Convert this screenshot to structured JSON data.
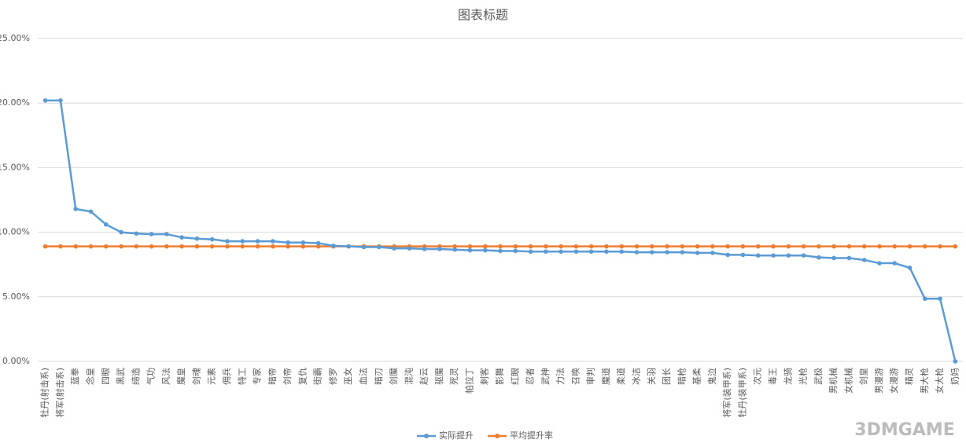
{
  "chart_data": {
    "type": "line",
    "title": "图表标题",
    "categories": [
      "牡丹(射击系)",
      "将军(射击系)",
      "蓝拳",
      "念皇",
      "四眼",
      "黑武",
      "缔造",
      "气功",
      "风法",
      "魔皇",
      "剑魂",
      "元素",
      "佣兵",
      "特工",
      "专家",
      "暗帝",
      "剑帝",
      "复仇",
      "街霸",
      "修罗",
      "巫女",
      "血法",
      "暗刃",
      "剑魔",
      "混沌",
      "赵云",
      "驱魔",
      "死灵",
      "帕拉丁",
      "刺客",
      "影舞",
      "红眼",
      "忍者",
      "武神",
      "力法",
      "召唤",
      "审判",
      "魔道",
      "柔道",
      "冰洁",
      "关羽",
      "团长",
      "暗枪",
      "基柔",
      "鬼泣",
      "将军(装甲系)",
      "牡丹(装甲系)",
      "次元",
      "毒王",
      "龙骑",
      "光枪",
      "武极",
      "男机械",
      "女机械",
      "剑皇",
      "男漫游",
      "女漫游",
      "精灵",
      "男大枪",
      "女大枪",
      "奶妈"
    ],
    "series": [
      {
        "name": "实际提升",
        "color": "#5b9bd5",
        "values": [
          20.2,
          20.2,
          11.8,
          11.6,
          10.6,
          10.0,
          9.9,
          9.85,
          9.85,
          9.6,
          9.5,
          9.45,
          9.3,
          9.3,
          9.3,
          9.3,
          9.2,
          9.2,
          9.15,
          8.95,
          8.9,
          8.85,
          8.85,
          8.75,
          8.75,
          8.7,
          8.7,
          8.65,
          8.6,
          8.6,
          8.55,
          8.55,
          8.5,
          8.5,
          8.5,
          8.5,
          8.5,
          8.5,
          8.5,
          8.45,
          8.45,
          8.45,
          8.45,
          8.4,
          8.4,
          8.25,
          8.25,
          8.2,
          8.2,
          8.2,
          8.2,
          8.05,
          8.0,
          8.0,
          7.85,
          7.6,
          7.6,
          7.25,
          4.85,
          4.85,
          0
        ]
      },
      {
        "name": "平均提升率",
        "color": "#ed7d31",
        "values": [
          8.9,
          8.9,
          8.9,
          8.9,
          8.9,
          8.9,
          8.9,
          8.9,
          8.9,
          8.9,
          8.9,
          8.9,
          8.9,
          8.9,
          8.9,
          8.9,
          8.9,
          8.9,
          8.9,
          8.9,
          8.9,
          8.9,
          8.9,
          8.9,
          8.9,
          8.9,
          8.9,
          8.9,
          8.9,
          8.9,
          8.9,
          8.9,
          8.9,
          8.9,
          8.9,
          8.9,
          8.9,
          8.9,
          8.9,
          8.9,
          8.9,
          8.9,
          8.9,
          8.9,
          8.9,
          8.9,
          8.9,
          8.9,
          8.9,
          8.9,
          8.9,
          8.9,
          8.9,
          8.9,
          8.9,
          8.9,
          8.9,
          8.9,
          8.9,
          8.9,
          8.9
        ]
      }
    ],
    "ylim": [
      0,
      25
    ],
    "yticks": [
      {
        "value": 0,
        "label": "0.00%"
      },
      {
        "value": 5,
        "label": "5.00%"
      },
      {
        "value": 10,
        "label": "10.00%"
      },
      {
        "value": 15,
        "label": "15.00%"
      },
      {
        "value": 20,
        "label": "20.00%"
      },
      {
        "value": 25,
        "label": "25.00%"
      }
    ],
    "grid": true,
    "legend": "bottom",
    "watermark": "3DMGAME"
  }
}
